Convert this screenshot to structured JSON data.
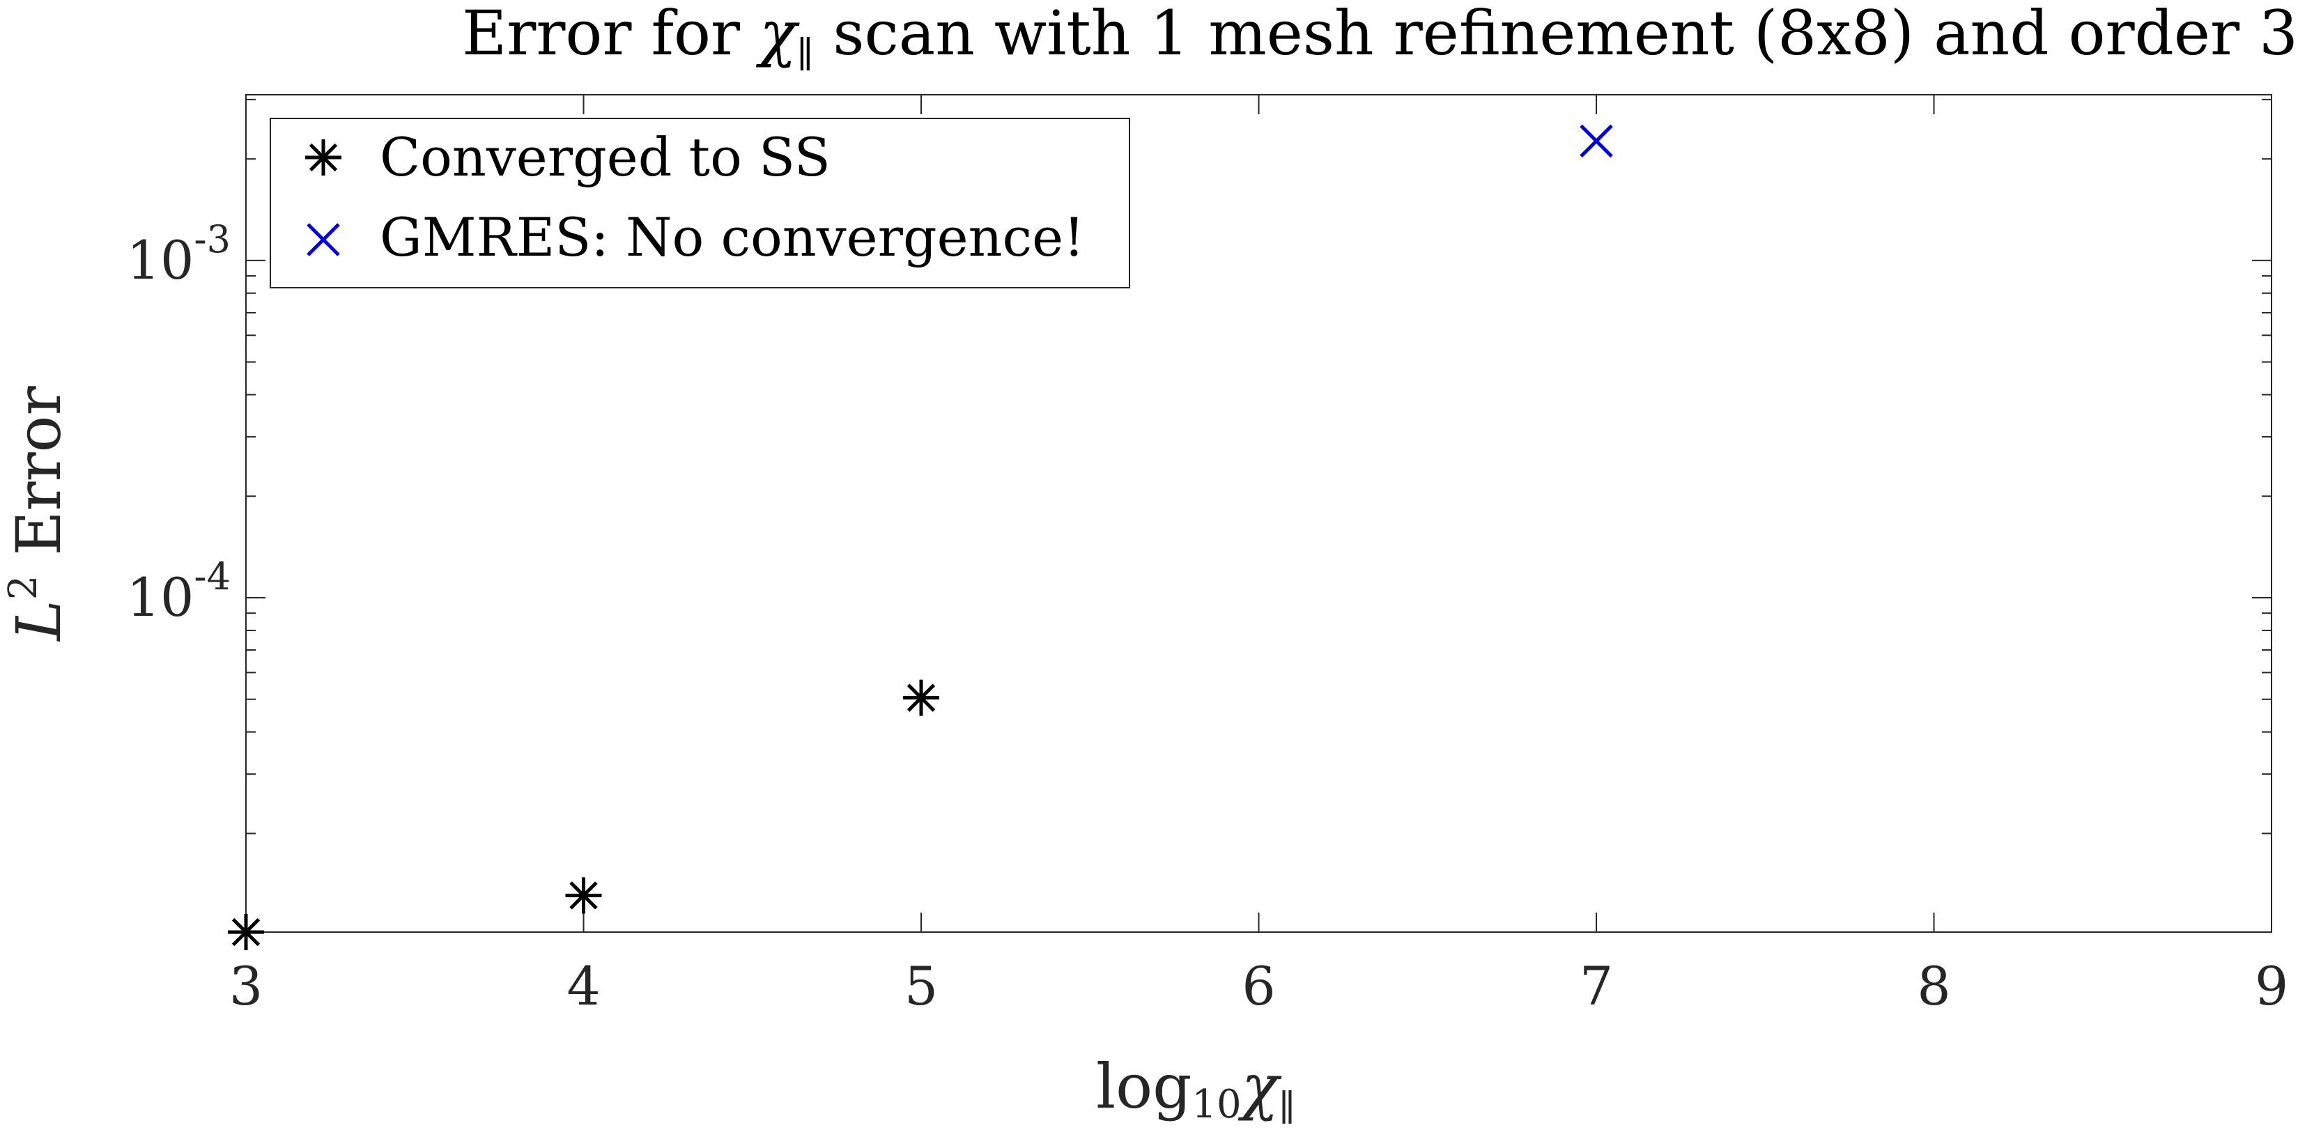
{
  "chart_data": {
    "type": "scatter",
    "title": {
      "prefix": "Error for ",
      "symbol": "χ",
      "subscript": "∥",
      "suffix": " scan with 1 mesh refinement (8x8) and order 3"
    },
    "xlabel": {
      "prefix": "log",
      "subscript": "10",
      "symbol": "χ",
      "symbol_subscript": "∥"
    },
    "ylabel": {
      "symbol": "L",
      "superscript": "2",
      "suffix": " Error"
    },
    "xlim": [
      3,
      9
    ],
    "ylim": [
      1.02e-05,
      0.0031
    ],
    "yscale": "log",
    "grid": false,
    "legend_position": "top-left",
    "x_ticks": [
      "3",
      "4",
      "5",
      "6",
      "7",
      "8",
      "9"
    ],
    "y_ticks": [
      {
        "value": 0.0001,
        "base": "10",
        "exponent": "-4"
      },
      {
        "value": 0.001,
        "base": "10",
        "exponent": "-3"
      }
    ],
    "series": [
      {
        "name": "Converged to SS",
        "marker": "asterisk",
        "color": "#000000",
        "points": [
          {
            "x": 3,
            "y": 1.02e-05
          },
          {
            "x": 4,
            "y": 1.31e-05
          },
          {
            "x": 5,
            "y": 5.05e-05
          }
        ]
      },
      {
        "name": "GMRES: No convergence!",
        "marker": "x",
        "color": "#0000dd",
        "points": [
          {
            "x": 7,
            "y": 0.00226
          }
        ]
      }
    ]
  }
}
